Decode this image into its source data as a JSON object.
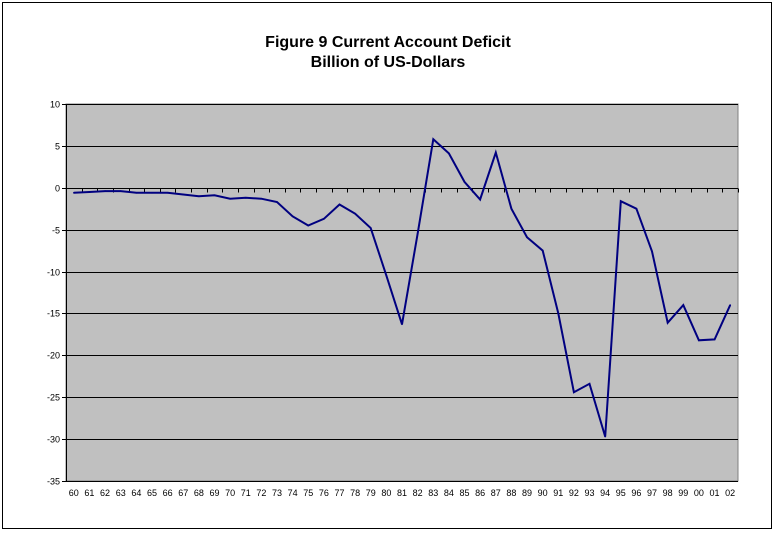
{
  "chart_data": {
    "type": "line",
    "title_line1": "Figure 9 Current Account Deficit",
    "title_line2": "Billion of US-Dollars",
    "xlabel": "",
    "ylabel": "",
    "ylim": [
      -35,
      10
    ],
    "yticks": [
      10,
      5,
      0,
      -5,
      -10,
      -15,
      -20,
      -25,
      -30,
      -35
    ],
    "grid": true,
    "legend": "none",
    "plot_background": "#c0c0c0",
    "line_color": "#000080",
    "categories": [
      "60",
      "61",
      "62",
      "63",
      "64",
      "65",
      "66",
      "67",
      "68",
      "69",
      "70",
      "71",
      "72",
      "73",
      "74",
      "75",
      "76",
      "77",
      "78",
      "79",
      "80",
      "81",
      "82",
      "83",
      "84",
      "85",
      "86",
      "87",
      "88",
      "89",
      "90",
      "91",
      "92",
      "93",
      "94",
      "95",
      "96",
      "97",
      "98",
      "99",
      "00",
      "01",
      "02"
    ],
    "series": [
      {
        "values": [
          -0.6,
          -0.5,
          -0.4,
          -0.4,
          -0.6,
          -0.6,
          -0.6,
          -0.8,
          -1.0,
          -0.9,
          -1.3,
          -1.2,
          -1.3,
          -1.7,
          -3.4,
          -4.5,
          -3.7,
          -2.0,
          -3.1,
          -4.8,
          -10.5,
          -16.3,
          -5.5,
          5.8,
          4.1,
          0.7,
          -1.4,
          4.2,
          -2.5,
          -5.9,
          -7.5,
          -15.0,
          -24.4,
          -23.4,
          -29.7,
          -1.6,
          -2.5,
          -7.6,
          -16.1,
          -14.0,
          -18.2,
          -18.1,
          -14.0
        ]
      }
    ]
  }
}
